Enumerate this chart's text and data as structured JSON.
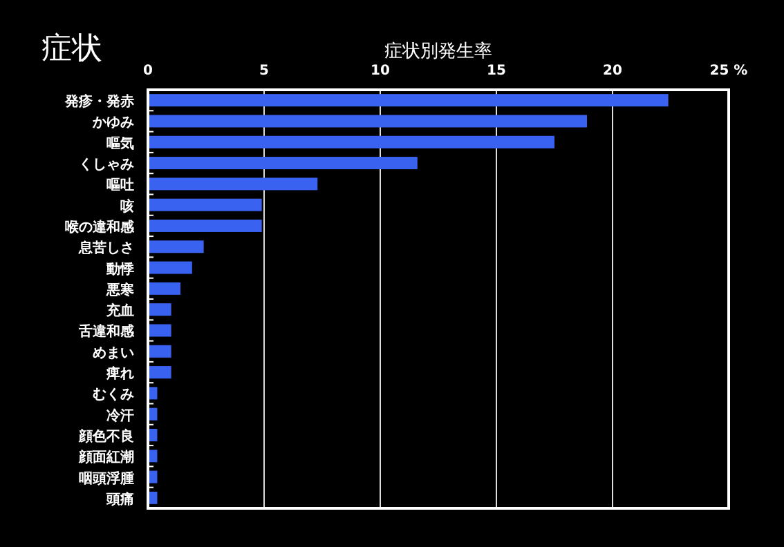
{
  "chart_data": {
    "type": "bar",
    "orientation": "horizontal",
    "title": "症状",
    "subtitle": "症状別発生率",
    "categories": [
      "発疹・発赤",
      "かゆみ",
      "嘔気",
      "くしゃみ",
      "嘔吐",
      "咳",
      "喉の違和感",
      "息苦しさ",
      "動悸",
      "悪寒",
      "充血",
      "舌違和感",
      "めまい",
      "痺れ",
      "むくみ",
      "冷汗",
      "顔色不良",
      "顔面紅潮",
      "咽頭浮腫",
      "頭痛"
    ],
    "values": [
      22.4,
      18.9,
      17.5,
      11.6,
      7.3,
      4.9,
      4.9,
      2.4,
      1.9,
      1.4,
      1.0,
      1.0,
      1.0,
      1.0,
      0.4,
      0.4,
      0.4,
      0.4,
      0.4,
      0.4
    ],
    "color": "#3a62f0",
    "xlim": [
      0,
      25
    ],
    "xticks": [
      0,
      5,
      10,
      15,
      20,
      {
        "value": 25,
        "label": "25 %"
      }
    ],
    "grid": "x"
  }
}
